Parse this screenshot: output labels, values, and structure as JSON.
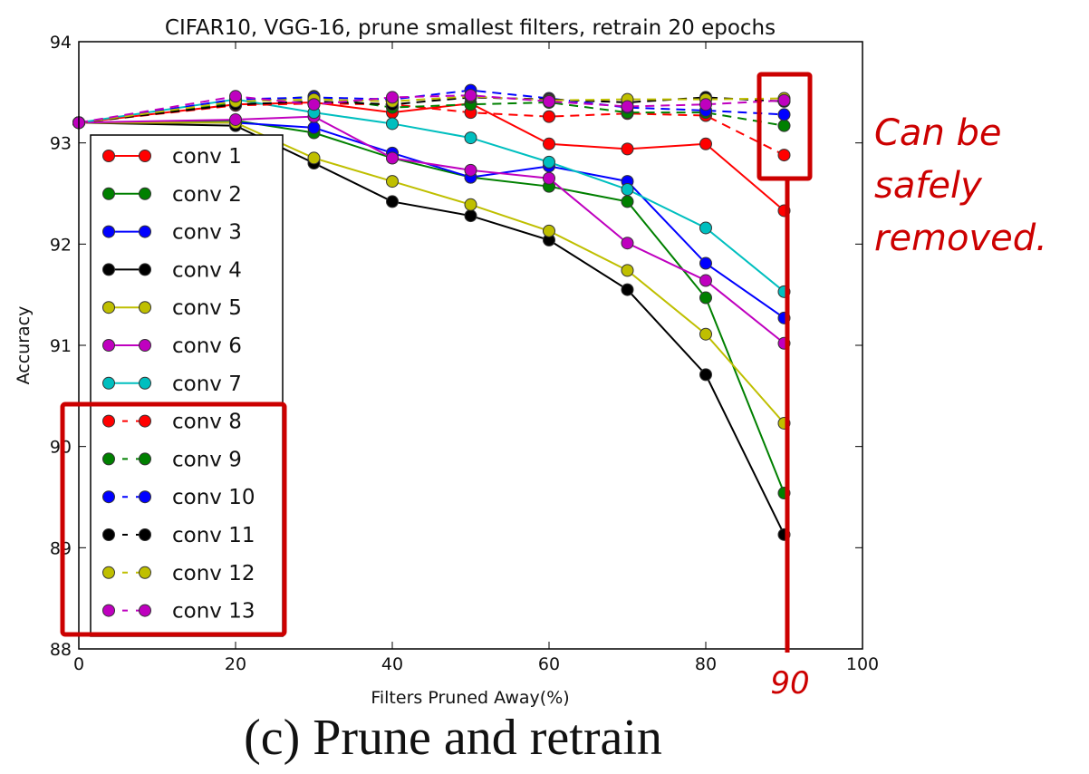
{
  "caption": "(c) Prune and retrain",
  "chart_data": {
    "type": "line",
    "title": "CIFAR10, VGG-16, prune smallest filters, retrain 20 epochs",
    "xlabel": "Filters Pruned Away(%)",
    "ylabel": "Accuracy",
    "xlim": [
      0,
      100
    ],
    "ylim": [
      88,
      94
    ],
    "xticks": [
      0,
      20,
      40,
      60,
      80,
      100
    ],
    "yticks": [
      88,
      89,
      90,
      91,
      92,
      93,
      94
    ],
    "grid": false,
    "legend_position": "left",
    "x": [
      0,
      20,
      30,
      40,
      50,
      60,
      70,
      80,
      90
    ],
    "series": [
      {
        "name": "conv 1",
        "color": "#ff0000",
        "style": "solid",
        "values": [
          93.2,
          93.38,
          93.4,
          93.3,
          93.39,
          92.99,
          92.94,
          92.99,
          92.33
        ]
      },
      {
        "name": "conv 2",
        "color": "#008000",
        "style": "solid",
        "values": [
          93.2,
          93.22,
          93.1,
          92.85,
          92.66,
          92.57,
          92.42,
          91.47,
          89.54
        ]
      },
      {
        "name": "conv 3",
        "color": "#0000ff",
        "style": "solid",
        "values": [
          93.2,
          93.2,
          93.15,
          92.9,
          92.66,
          92.77,
          92.62,
          91.81,
          91.27
        ]
      },
      {
        "name": "conv 4",
        "color": "#000000",
        "style": "solid",
        "values": [
          93.2,
          93.17,
          92.8,
          92.42,
          92.28,
          92.04,
          91.55,
          90.71,
          89.13
        ]
      },
      {
        "name": "conv 5",
        "color": "#bfbf00",
        "style": "solid",
        "values": [
          93.2,
          93.2,
          92.85,
          92.62,
          92.39,
          92.13,
          91.74,
          91.11,
          90.23
        ]
      },
      {
        "name": "conv 6",
        "color": "#bf00bf",
        "style": "solid",
        "values": [
          93.2,
          93.23,
          93.26,
          92.85,
          92.73,
          92.65,
          92.01,
          91.64,
          91.02
        ]
      },
      {
        "name": "conv 7",
        "color": "#00bfbf",
        "style": "solid",
        "values": [
          93.2,
          93.43,
          93.3,
          93.19,
          93.05,
          92.81,
          92.54,
          92.16,
          91.53
        ]
      },
      {
        "name": "conv 8",
        "color": "#ff0000",
        "style": "dashed",
        "values": [
          93.2,
          93.37,
          93.39,
          93.38,
          93.3,
          93.26,
          93.29,
          93.27,
          92.88
        ]
      },
      {
        "name": "conv 9",
        "color": "#008000",
        "style": "dashed",
        "values": [
          93.2,
          93.4,
          93.46,
          93.35,
          93.38,
          93.4,
          93.3,
          93.3,
          93.17
        ]
      },
      {
        "name": "conv 10",
        "color": "#0000ff",
        "style": "dashed",
        "values": [
          93.2,
          93.43,
          93.45,
          93.43,
          93.52,
          93.44,
          93.35,
          93.32,
          93.28
        ]
      },
      {
        "name": "conv 11",
        "color": "#000000",
        "style": "dashed",
        "values": [
          93.2,
          93.38,
          93.41,
          93.38,
          93.45,
          93.43,
          93.4,
          93.45,
          93.41
        ]
      },
      {
        "name": "conv 12",
        "color": "#bfbf00",
        "style": "dashed",
        "values": [
          93.2,
          93.41,
          93.43,
          93.41,
          93.46,
          93.42,
          93.43,
          93.43,
          93.44
        ]
      },
      {
        "name": "conv 13",
        "color": "#bf00bf",
        "style": "dashed",
        "values": [
          93.2,
          93.46,
          93.38,
          93.45,
          93.47,
          93.41,
          93.36,
          93.38,
          93.42
        ]
      }
    ],
    "annotations": {
      "note_lines": [
        "Can be",
        "safely",
        "removed."
      ],
      "marker_label": "90",
      "highlight_x": 90,
      "highlight_color": "#cc0000"
    }
  }
}
